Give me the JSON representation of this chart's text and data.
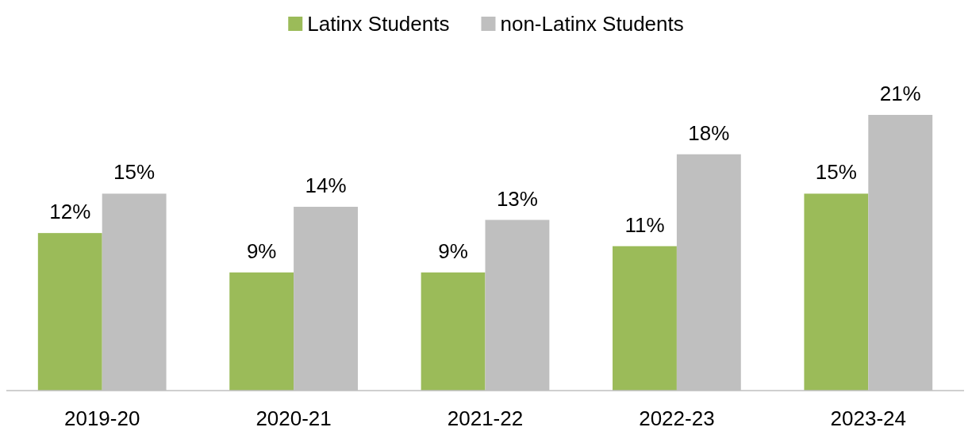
{
  "chart_data": {
    "type": "bar",
    "categories": [
      "2019-20",
      "2020-21",
      "2021-22",
      "2022-23",
      "2023-24"
    ],
    "series": [
      {
        "name": "Latinx Students",
        "color": "#9bbb59",
        "values": [
          12,
          9,
          9,
          11,
          15
        ],
        "value_labels": [
          "12%",
          "9%",
          "9%",
          "11%",
          "15%"
        ]
      },
      {
        "name": "non-Latinx Students",
        "color": "#bfbfbf",
        "values": [
          15,
          14,
          13,
          18,
          21
        ],
        "value_labels": [
          "15%",
          "14%",
          "13%",
          "18%",
          "21%"
        ]
      }
    ],
    "legend": "top",
    "grid": false
  }
}
